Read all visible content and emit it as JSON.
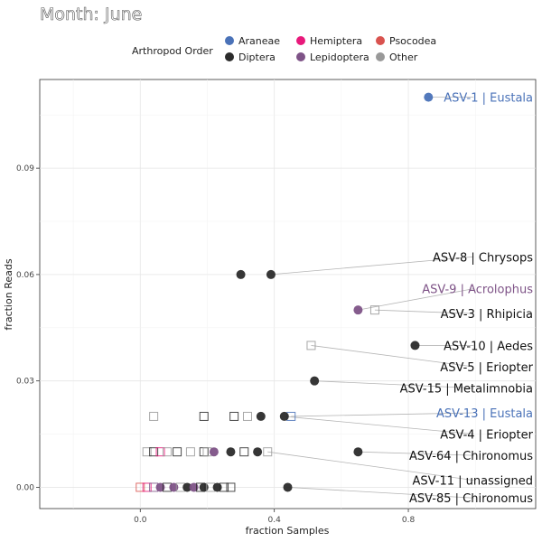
{
  "chart_data": {
    "type": "scatter",
    "title": "Month: June",
    "xlabel": "fraction Samples",
    "ylabel": "fraction Reads",
    "xlim": [
      -0.3,
      1.18
    ],
    "ylim": [
      -0.006,
      0.115
    ],
    "xticks": [
      {
        "v": 0.0,
        "label": "0.0"
      },
      {
        "v": 0.4,
        "label": "0.4"
      },
      {
        "v": 0.8,
        "label": "0.8"
      }
    ],
    "yticks": [
      {
        "v": 0.0,
        "label": "0.00"
      },
      {
        "v": 0.03,
        "label": "0.03"
      },
      {
        "v": 0.06,
        "label": "0.06"
      },
      {
        "v": 0.09,
        "label": "0.09"
      }
    ],
    "grid": true,
    "legend": {
      "title": "Arthropod Order",
      "position": "top",
      "items": [
        {
          "name": "Araneae",
          "color": "#4a72b8"
        },
        {
          "name": "Diptera",
          "color": "#2b2b2b"
        },
        {
          "name": "Hemiptera",
          "color": "#e8197b"
        },
        {
          "name": "Lepidoptera",
          "color": "#7e5387"
        },
        {
          "name": "Psocodea",
          "color": "#d9534f"
        },
        {
          "name": "Other",
          "color": "#999999"
        }
      ]
    },
    "labeled_points": [
      {
        "label": "ASV-1 | Eustala",
        "x": 0.86,
        "y": 0.11,
        "order": "Araneae",
        "shape": "filled",
        "label_x": 1.0,
        "label_y": 0.11
      },
      {
        "label": "ASV-8 | Chrysops",
        "x": 0.39,
        "y": 0.06,
        "order": "Diptera",
        "shape": "filled",
        "label_x": 1.0,
        "label_y": 0.065
      },
      {
        "label": "ASV-9 | Acrolophus",
        "x": 0.65,
        "y": 0.05,
        "order": "Lepidoptera",
        "shape": "filled",
        "label_x": 1.0,
        "label_y": 0.056
      },
      {
        "label": "ASV-3 | Rhipicia",
        "x": 0.7,
        "y": 0.05,
        "order": "Other",
        "shape": "open",
        "label_x": 1.0,
        "label_y": 0.049
      },
      {
        "label": "ASV-10 | Aedes",
        "x": 0.82,
        "y": 0.04,
        "order": "Diptera",
        "shape": "filled",
        "label_x": 1.0,
        "label_y": 0.04
      },
      {
        "label": "ASV-5 | Eriopter",
        "x": 0.51,
        "y": 0.04,
        "order": "Other",
        "shape": "open",
        "label_x": 1.0,
        "label_y": 0.034
      },
      {
        "label": "ASV-15 | Metalimnobia",
        "x": 0.52,
        "y": 0.03,
        "order": "Diptera",
        "shape": "filled",
        "label_x": 1.0,
        "label_y": 0.028
      },
      {
        "label": "ASV-13 | Eustala",
        "x": 0.45,
        "y": 0.02,
        "order": "Araneae",
        "shape": "open",
        "label_x": 1.0,
        "label_y": 0.021
      },
      {
        "label": "ASV-4 | Eriopter",
        "x": 0.43,
        "y": 0.02,
        "order": "Diptera",
        "shape": "filled",
        "label_x": 1.0,
        "label_y": 0.015
      },
      {
        "label": "ASV-64 | Chironomus",
        "x": 0.65,
        "y": 0.01,
        "order": "Diptera",
        "shape": "filled",
        "label_x": 1.0,
        "label_y": 0.009
      },
      {
        "label": "ASV-11 | unassigned",
        "x": 0.38,
        "y": 0.01,
        "order": "Other",
        "shape": "open",
        "label_x": 1.0,
        "label_y": 0.002
      },
      {
        "label": "ASV-85 | Chironomus",
        "x": 0.44,
        "y": 0.0,
        "order": "Diptera",
        "shape": "filled",
        "label_x": 1.0,
        "label_y": -0.003
      }
    ],
    "other_points": [
      {
        "x": 0.3,
        "y": 0.06,
        "order": "Diptera",
        "shape": "filled"
      },
      {
        "x": 0.04,
        "y": 0.02,
        "order": "Other",
        "shape": "open"
      },
      {
        "x": 0.19,
        "y": 0.02,
        "order": "Diptera",
        "shape": "open"
      },
      {
        "x": 0.28,
        "y": 0.02,
        "order": "Diptera",
        "shape": "open"
      },
      {
        "x": 0.32,
        "y": 0.02,
        "order": "Other",
        "shape": "open"
      },
      {
        "x": 0.36,
        "y": 0.02,
        "order": "Diptera",
        "shape": "filled"
      },
      {
        "x": 0.02,
        "y": 0.01,
        "order": "Other",
        "shape": "open"
      },
      {
        "x": 0.04,
        "y": 0.01,
        "order": "Diptera",
        "shape": "open"
      },
      {
        "x": 0.06,
        "y": 0.01,
        "order": "Hemiptera",
        "shape": "open"
      },
      {
        "x": 0.08,
        "y": 0.01,
        "order": "Other",
        "shape": "open"
      },
      {
        "x": 0.11,
        "y": 0.01,
        "order": "Diptera",
        "shape": "open"
      },
      {
        "x": 0.15,
        "y": 0.01,
        "order": "Other",
        "shape": "open"
      },
      {
        "x": 0.19,
        "y": 0.01,
        "order": "Diptera",
        "shape": "open"
      },
      {
        "x": 0.2,
        "y": 0.01,
        "order": "Other",
        "shape": "open"
      },
      {
        "x": 0.22,
        "y": 0.01,
        "order": "Lepidoptera",
        "shape": "filled"
      },
      {
        "x": 0.27,
        "y": 0.01,
        "order": "Diptera",
        "shape": "filled"
      },
      {
        "x": 0.31,
        "y": 0.01,
        "order": "Diptera",
        "shape": "open"
      },
      {
        "x": 0.35,
        "y": 0.01,
        "order": "Diptera",
        "shape": "filled"
      },
      {
        "x": 0.0,
        "y": 0.0,
        "order": "Psocodea",
        "shape": "open"
      },
      {
        "x": 0.02,
        "y": 0.0,
        "order": "Hemiptera",
        "shape": "open"
      },
      {
        "x": 0.04,
        "y": 0.0,
        "order": "Lepidoptera",
        "shape": "open"
      },
      {
        "x": 0.06,
        "y": 0.0,
        "order": "Lepidoptera",
        "shape": "filled"
      },
      {
        "x": 0.08,
        "y": 0.0,
        "order": "Diptera",
        "shape": "open"
      },
      {
        "x": 0.1,
        "y": 0.0,
        "order": "Lepidoptera",
        "shape": "filled"
      },
      {
        "x": 0.12,
        "y": 0.0,
        "order": "Other",
        "shape": "open"
      },
      {
        "x": 0.14,
        "y": 0.0,
        "order": "Diptera",
        "shape": "filled"
      },
      {
        "x": 0.16,
        "y": 0.0,
        "order": "Lepidoptera",
        "shape": "filled"
      },
      {
        "x": 0.18,
        "y": 0.0,
        "order": "Diptera",
        "shape": "open"
      },
      {
        "x": 0.19,
        "y": 0.0,
        "order": "Diptera",
        "shape": "filled"
      },
      {
        "x": 0.21,
        "y": 0.0,
        "order": "Other",
        "shape": "open"
      },
      {
        "x": 0.23,
        "y": 0.0,
        "order": "Diptera",
        "shape": "filled"
      },
      {
        "x": 0.25,
        "y": 0.0,
        "order": "Diptera",
        "shape": "open"
      },
      {
        "x": 0.27,
        "y": 0.0,
        "order": "Diptera",
        "shape": "open"
      }
    ]
  }
}
